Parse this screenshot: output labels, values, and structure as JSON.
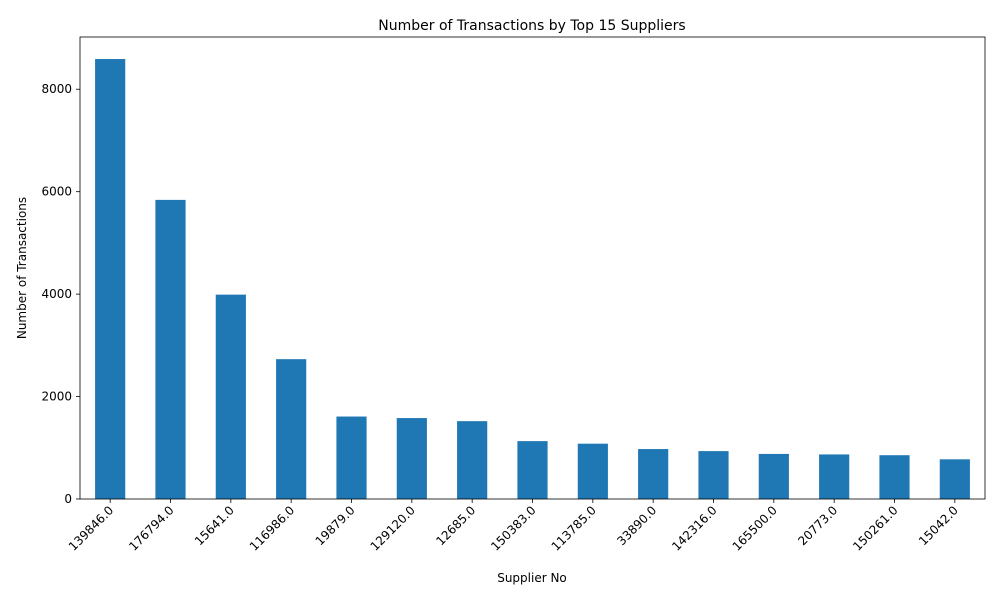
{
  "chart_data": {
    "type": "bar",
    "title": "Number of Transactions by Top 15 Suppliers",
    "xlabel": "Supplier No",
    "ylabel": "Number of Transactions",
    "categories": [
      "139846.0",
      "176794.0",
      "15641.0",
      "116986.0",
      "19879.0",
      "129120.0",
      "12685.0",
      "150383.0",
      "113785.0",
      "33890.0",
      "142316.0",
      "165500.0",
      "20773.0",
      "150261.0",
      "15042.0"
    ],
    "values": [
      8590,
      5840,
      3990,
      2730,
      1610,
      1580,
      1520,
      1130,
      1080,
      975,
      935,
      880,
      870,
      855,
      775
    ],
    "ylim": [
      0,
      9020
    ],
    "yticks": [
      "0",
      "2000",
      "4000",
      "6000",
      "8000"
    ],
    "grid": false,
    "bar_color": "#1f77b4"
  }
}
